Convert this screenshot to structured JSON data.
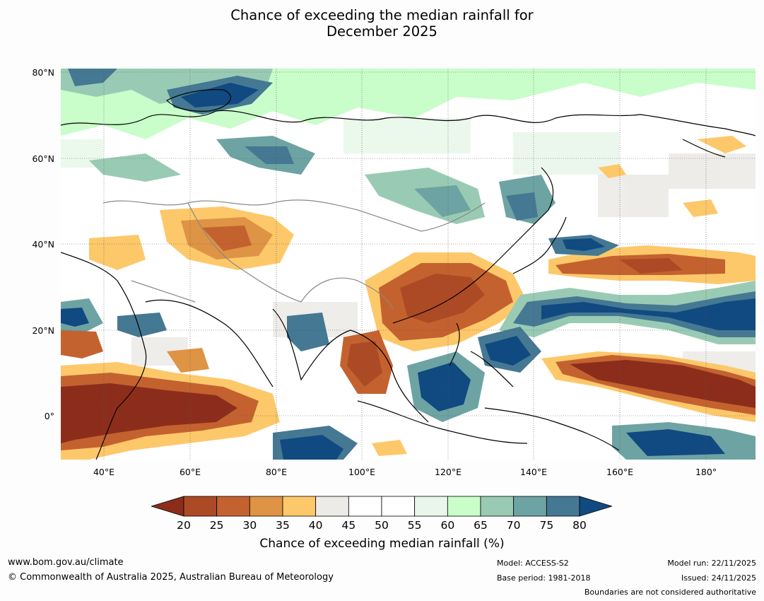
{
  "title": {
    "line1": "Chance of exceeding the median rainfall for",
    "line2": "December 2025"
  },
  "map": {
    "lat_labels": [
      "80°N",
      "60°N",
      "40°N",
      "20°N",
      "0°"
    ],
    "lon_labels": [
      "40°E",
      "60°E",
      "80°E",
      "100°E",
      "120°E",
      "140°E",
      "160°E",
      "180°"
    ]
  },
  "colorbar": {
    "ticks": [
      "20",
      "25",
      "30",
      "35",
      "40",
      "45",
      "50",
      "55",
      "60",
      "65",
      "70",
      "75",
      "80"
    ],
    "colors": [
      "#8c2d1c",
      "#ad4a26",
      "#c4622f",
      "#de9444",
      "#fdc86a",
      "#ecebe7",
      "#ffffff",
      "#ffffff",
      "#e9f7ea",
      "#c9fdca",
      "#99cbb4",
      "#6ea3a3",
      "#457892",
      "#104a80"
    ],
    "label": "Chance of exceeding median rainfall (%)"
  },
  "footer": {
    "website": "www.bom.gov.au/climate",
    "copyright": "© Commonwealth of Australia 2025, Australian Bureau of Meteorology",
    "model": "Model: ACCESS-S2",
    "base_period": "Base period: 1981-2018",
    "model_run": "Model run: 22/11/2025",
    "issued": "Issued: 24/11/2025",
    "disclaimer": "Boundaries are not considered authoritative"
  }
}
